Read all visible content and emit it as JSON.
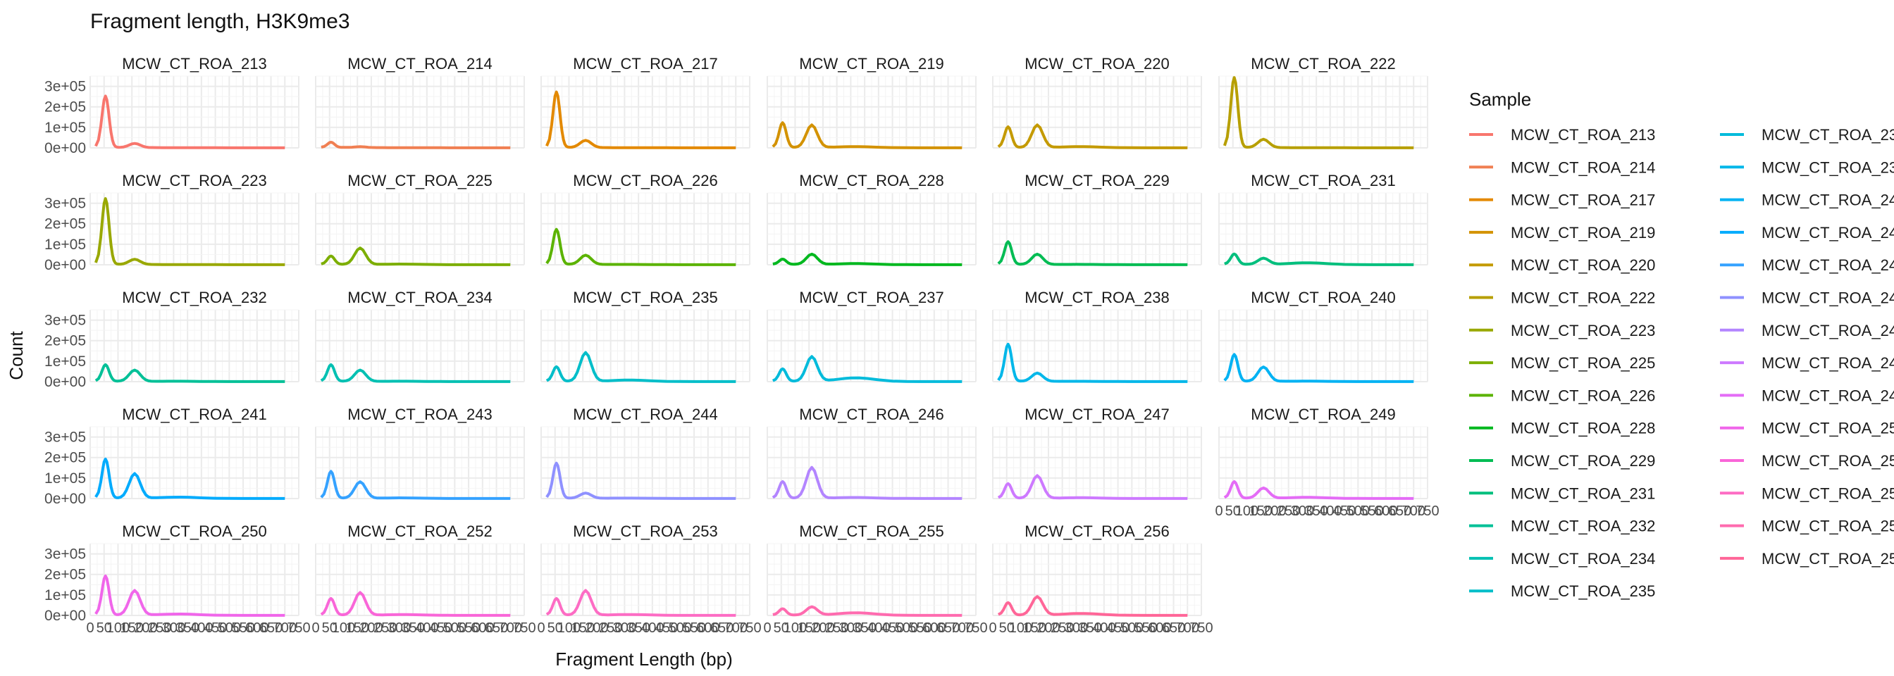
{
  "chart_data": {
    "type": "line",
    "title": "Fragment length, H3K9me3",
    "xlabel": "Fragment Length (bp)",
    "ylabel": "Count",
    "xlim": [
      0,
      750
    ],
    "ylim": [
      0,
      350000
    ],
    "y_ticks": [
      0,
      100000,
      200000,
      300000
    ],
    "y_tick_labels": [
      "0e+00",
      "1e+05",
      "2e+05",
      "3e+05"
    ],
    "x_ticks": [
      0,
      50,
      100,
      150,
      200,
      250,
      300,
      350,
      400,
      450,
      500,
      550,
      600,
      650,
      700,
      750
    ],
    "x_tick_labels": [
      "0",
      "50",
      "100",
      "150",
      "200",
      "250",
      "300",
      "350",
      "400",
      "450",
      "500",
      "550",
      "600",
      "650",
      "700",
      "750"
    ],
    "grid": true,
    "facet_layout": "6 columns x 5 rows, free panel labels on top",
    "legend": {
      "title": "Sample",
      "placement": "right",
      "columns": 2
    },
    "panel_profile_x": [
      20,
      30,
      38,
      45,
      50,
      55,
      60,
      65,
      70,
      75,
      80,
      85,
      90,
      95,
      100,
      110,
      120,
      130,
      140,
      150,
      160,
      170,
      180,
      190,
      200,
      210,
      220,
      240,
      260,
      280,
      300,
      330,
      360,
      400,
      450,
      500,
      550,
      600,
      650,
      700
    ],
    "series": [
      {
        "name": "MCW_CT_ROA_213",
        "color": "#F8766D",
        "nuc_peak": 20000,
        "sub_peak": 250000,
        "tail": 0.0
      },
      {
        "name": "MCW_CT_ROA_214",
        "color": "#F07F52",
        "nuc_peak": 4000,
        "sub_peak": 25000,
        "tail": 0.0
      },
      {
        "name": "MCW_CT_ROA_217",
        "color": "#E38900",
        "nuc_peak": 35000,
        "sub_peak": 270000,
        "tail": 0.0
      },
      {
        "name": "MCW_CT_ROA_219",
        "color": "#D39200",
        "nuc_peak": 110000,
        "sub_peak": 120000,
        "tail": 0.05
      },
      {
        "name": "MCW_CT_ROA_220",
        "color": "#C49A00",
        "nuc_peak": 110000,
        "sub_peak": 100000,
        "tail": 0.05
      },
      {
        "name": "MCW_CT_ROA_222",
        "color": "#B79F00",
        "nuc_peak": 40000,
        "sub_peak": 340000,
        "tail": 0.0
      },
      {
        "name": "MCW_CT_ROA_223",
        "color": "#99A800",
        "nuc_peak": 25000,
        "sub_peak": 320000,
        "tail": 0.0
      },
      {
        "name": "MCW_CT_ROA_225",
        "color": "#7CAE00",
        "nuc_peak": 80000,
        "sub_peak": 40000,
        "tail": 0.03
      },
      {
        "name": "MCW_CT_ROA_226",
        "color": "#5BB300",
        "nuc_peak": 45000,
        "sub_peak": 170000,
        "tail": 0.02
      },
      {
        "name": "MCW_CT_ROA_228",
        "color": "#00B81F",
        "nuc_peak": 50000,
        "sub_peak": 25000,
        "tail": 0.1
      },
      {
        "name": "MCW_CT_ROA_229",
        "color": "#00BC53",
        "nuc_peak": 50000,
        "sub_peak": 110000,
        "tail": 0.02
      },
      {
        "name": "MCW_CT_ROA_231",
        "color": "#00BF7D",
        "nuc_peak": 30000,
        "sub_peak": 50000,
        "tail": 0.3
      },
      {
        "name": "MCW_CT_ROA_232",
        "color": "#00C097",
        "nuc_peak": 55000,
        "sub_peak": 80000,
        "tail": 0.02
      },
      {
        "name": "MCW_CT_ROA_234",
        "color": "#00C0B2",
        "nuc_peak": 55000,
        "sub_peak": 80000,
        "tail": 0.02
      },
      {
        "name": "MCW_CT_ROA_235",
        "color": "#00BEC9",
        "nuc_peak": 140000,
        "sub_peak": 70000,
        "tail": 0.05
      },
      {
        "name": "MCW_CT_ROA_237",
        "color": "#00BBDB",
        "nuc_peak": 120000,
        "sub_peak": 60000,
        "tail": 0.15
      },
      {
        "name": "MCW_CT_ROA_238",
        "color": "#00B7E9",
        "nuc_peak": 40000,
        "sub_peak": 180000,
        "tail": 0.02
      },
      {
        "name": "MCW_CT_ROA_240",
        "color": "#00B2F3",
        "nuc_peak": 70000,
        "sub_peak": 130000,
        "tail": 0.02
      },
      {
        "name": "MCW_CT_ROA_241",
        "color": "#00ABFD",
        "nuc_peak": 120000,
        "sub_peak": 190000,
        "tail": 0.05
      },
      {
        "name": "MCW_CT_ROA_243",
        "color": "#35A2FF",
        "nuc_peak": 80000,
        "sub_peak": 130000,
        "tail": 0.03
      },
      {
        "name": "MCW_CT_ROA_244",
        "color": "#8F91FF",
        "nuc_peak": 25000,
        "sub_peak": 170000,
        "tail": 0.05
      },
      {
        "name": "MCW_CT_ROA_246",
        "color": "#B385FF",
        "nuc_peak": 150000,
        "sub_peak": 80000,
        "tail": 0.03
      },
      {
        "name": "MCW_CT_ROA_247",
        "color": "#CD79FF",
        "nuc_peak": 110000,
        "sub_peak": 70000,
        "tail": 0.03
      },
      {
        "name": "MCW_CT_ROA_249",
        "color": "#E46CF6",
        "nuc_peak": 50000,
        "sub_peak": 80000,
        "tail": 0.1
      },
      {
        "name": "MCW_CT_ROA_250",
        "color": "#F066EA",
        "nuc_peak": 120000,
        "sub_peak": 190000,
        "tail": 0.05
      },
      {
        "name": "MCW_CT_ROA_252",
        "color": "#F966D8",
        "nuc_peak": 110000,
        "sub_peak": 80000,
        "tail": 0.03
      },
      {
        "name": "MCW_CT_ROA_253",
        "color": "#FD6CC4",
        "nuc_peak": 120000,
        "sub_peak": 80000,
        "tail": 0.03
      },
      {
        "name": "MCW_CT_ROA_255",
        "color": "#FF6BAF",
        "nuc_peak": 40000,
        "sub_peak": 30000,
        "tail": 0.3
      },
      {
        "name": "MCW_CT_ROA_256",
        "color": "#FF6698",
        "nuc_peak": 90000,
        "sub_peak": 60000,
        "tail": 0.1
      }
    ]
  }
}
